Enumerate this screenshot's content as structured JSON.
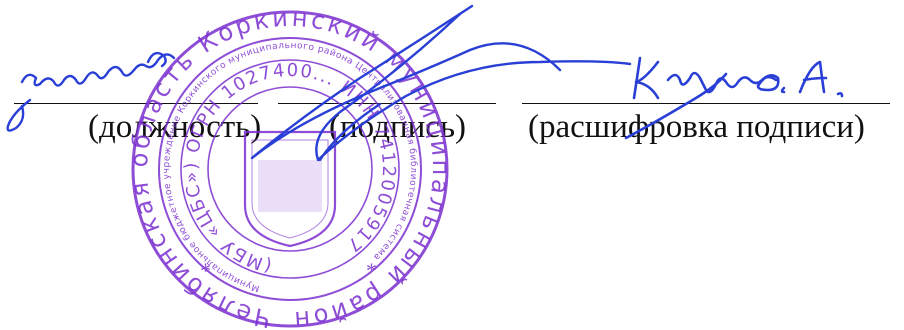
{
  "signature_block": {
    "captions": {
      "position": "(должность)",
      "signature": "(подпись)",
      "signature_decoding": "(расшифровка подписи)"
    },
    "handwritten": {
      "position_text": "директор",
      "name_text": "Кузина О.А."
    }
  },
  "stamp": {
    "outer_text": "Челябинская область Коркинский муниципальный район",
    "middle_text": "Муниципальное бюджетное учреждение Коркинского муниципального района Централизованная библиотечная система",
    "inner_text": "(МБУ «ЦБС») ОГРН 1027400... ИНН 7412005917",
    "ink_color": "#7b2fd0"
  },
  "colors": {
    "signature_ink": "#2a3fd6",
    "print_ink": "#111111"
  }
}
